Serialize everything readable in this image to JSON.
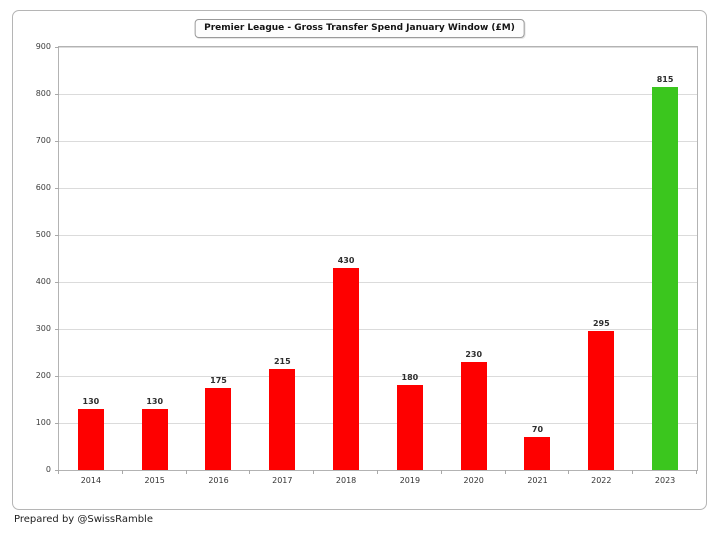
{
  "chart_data": {
    "type": "bar",
    "title": "Premier League - Gross Transfer Spend January Window (£M)",
    "categories": [
      "2014",
      "2015",
      "2016",
      "2017",
      "2018",
      "2019",
      "2020",
      "2021",
      "2022",
      "2023"
    ],
    "values": [
      130,
      130,
      175,
      215,
      430,
      180,
      230,
      70,
      295,
      815
    ],
    "bar_colors": [
      "#fe0000",
      "#fe0000",
      "#fe0000",
      "#fe0000",
      "#fe0000",
      "#fe0000",
      "#fe0000",
      "#fe0000",
      "#fe0000",
      "#3bc61e"
    ],
    "highlight_category": "2023",
    "xlabel": "",
    "ylabel": "",
    "ylim": [
      0,
      900
    ],
    "yticks": [
      0,
      100,
      200,
      300,
      400,
      500,
      600,
      700,
      800,
      900
    ],
    "grid": true,
    "legend_position": "none",
    "colors": {
      "bar_default": "#fe0000",
      "bar_highlight": "#3bc61e",
      "gridline": "#dbdbdb",
      "axis": "#b3b3b3",
      "label": "#333333"
    }
  },
  "footer": {
    "credit": "Prepared by @SwissRamble"
  }
}
